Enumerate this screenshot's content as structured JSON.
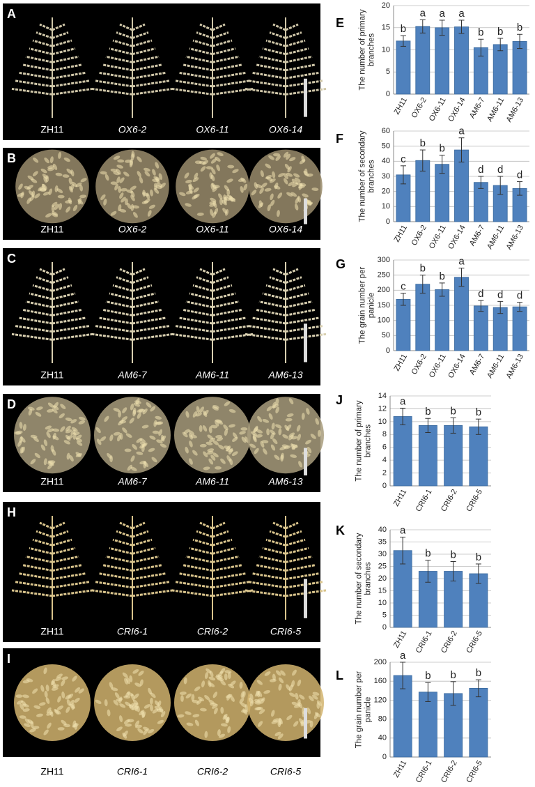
{
  "photo_panels": [
    {
      "label": "A",
      "genotypes": [
        "ZH11",
        "OX6-2",
        "OX6-11",
        "OX6-14"
      ]
    },
    {
      "label": "B",
      "genotypes": [
        "ZH11",
        "OX6-2",
        "OX6-11",
        "OX6-14"
      ]
    },
    {
      "label": "C",
      "genotypes": [
        "ZH11",
        "AM6-7",
        "AM6-11",
        "AM6-13"
      ]
    },
    {
      "label": "D",
      "genotypes": [
        "ZH11",
        "AM6-7",
        "AM6-11",
        "AM6-13"
      ]
    },
    {
      "label": "H",
      "genotypes": [
        "ZH11",
        "CRI6-1",
        "CRI6-2",
        "CRI6-5"
      ]
    },
    {
      "label": "I",
      "genotypes": [
        "ZH11",
        "CRI6-1",
        "CRI6-2",
        "CRI6-5"
      ]
    }
  ],
  "chart_data": [
    {
      "type": "bar",
      "panel_label": "E",
      "ylabel": [
        "The number of primary",
        "branches"
      ],
      "categories": [
        "ZH11",
        "OX6-2",
        "OX6-11",
        "OX6-14",
        "AM6-7",
        "AM6-11",
        "AM6-13"
      ],
      "values": [
        12,
        15.3,
        15,
        15.2,
        10.5,
        11.2,
        11.9
      ],
      "errors": [
        1.2,
        1.5,
        1.7,
        1.5,
        1.9,
        1.4,
        1.6
      ],
      "annotations": [
        "b",
        "a",
        "a",
        "a",
        "b",
        "b",
        "b"
      ],
      "color": "#4f81bd",
      "ylim": [
        0,
        20
      ],
      "yticks": [
        0,
        5,
        10,
        15,
        20
      ],
      "grid": true
    },
    {
      "type": "bar",
      "panel_label": "F",
      "ylabel": [
        "The number of secondary",
        "branches"
      ],
      "categories": [
        "ZH11",
        "OX6-2",
        "OX6-11",
        "OX6-14",
        "AM6-7",
        "AM6-11",
        "AM6-13"
      ],
      "values": [
        31,
        40.5,
        38,
        47.5,
        26,
        24,
        22
      ],
      "errors": [
        6,
        7,
        6,
        8,
        4,
        6,
        4.5
      ],
      "annotations": [
        "c",
        "b",
        "b",
        "a",
        "d",
        "d",
        "d"
      ],
      "color": "#4f81bd",
      "ylim": [
        0,
        60
      ],
      "yticks": [
        0,
        10,
        20,
        30,
        40,
        50,
        60
      ],
      "grid": true
    },
    {
      "type": "bar",
      "panel_label": "G",
      "ylabel": [
        "The  grain number per",
        "panicle"
      ],
      "categories": [
        "ZH11",
        "OX6-2",
        "OX6-11",
        "OX6-14",
        "AM6-7",
        "AM6-11",
        "AM6-13"
      ],
      "values": [
        170,
        220,
        202,
        243,
        148,
        143,
        145
      ],
      "errors": [
        20,
        30,
        22,
        30,
        18,
        20,
        15
      ],
      "annotations": [
        "c",
        "b",
        "b",
        "a",
        "d",
        "d",
        "d"
      ],
      "color": "#4f81bd",
      "ylim": [
        0,
        300
      ],
      "yticks": [
        0,
        50,
        100,
        150,
        200,
        250,
        300
      ],
      "grid": true
    },
    {
      "type": "bar",
      "panel_label": "J",
      "ylabel": [
        "The number of primary",
        "branches"
      ],
      "categories": [
        "ZH11",
        "CRI6-1",
        "CRI6-2",
        "CRI6-5"
      ],
      "values": [
        10.8,
        9.4,
        9.4,
        9.2
      ],
      "errors": [
        1.3,
        1.1,
        1.2,
        1.2
      ],
      "annotations": [
        "a",
        "b",
        "b",
        "b"
      ],
      "color": "#4f81bd",
      "ylim": [
        0,
        14
      ],
      "yticks": [
        0,
        2,
        4,
        6,
        8,
        10,
        12,
        14
      ],
      "grid": true
    },
    {
      "type": "bar",
      "panel_label": "K",
      "ylabel": [
        "The  number of secondary",
        "branches"
      ],
      "categories": [
        "ZH11",
        "CRI6-1",
        "CRI6-2",
        "CRI6-5"
      ],
      "values": [
        31.5,
        23,
        23,
        22
      ],
      "errors": [
        5.5,
        4.5,
        4,
        4
      ],
      "annotations": [
        "a",
        "b",
        "b",
        "b"
      ],
      "color": "#4f81bd",
      "ylim": [
        0,
        40
      ],
      "yticks": [
        0,
        5,
        10,
        15,
        20,
        25,
        30,
        35,
        40
      ],
      "grid": true
    },
    {
      "type": "bar",
      "panel_label": "L",
      "ylabel": [
        "The grain number per",
        "panicle"
      ],
      "categories": [
        "ZH11",
        "CRI6-1",
        "CRI6-2",
        "CRI6-5"
      ],
      "values": [
        172,
        137,
        134,
        145
      ],
      "errors": [
        28,
        20,
        25,
        18
      ],
      "annotations": [
        "a",
        "b",
        "b",
        "b"
      ],
      "color": "#4f81bd",
      "ylim": [
        0,
        200
      ],
      "yticks": [
        0,
        40,
        80,
        120,
        160,
        200
      ],
      "grid": true
    }
  ]
}
